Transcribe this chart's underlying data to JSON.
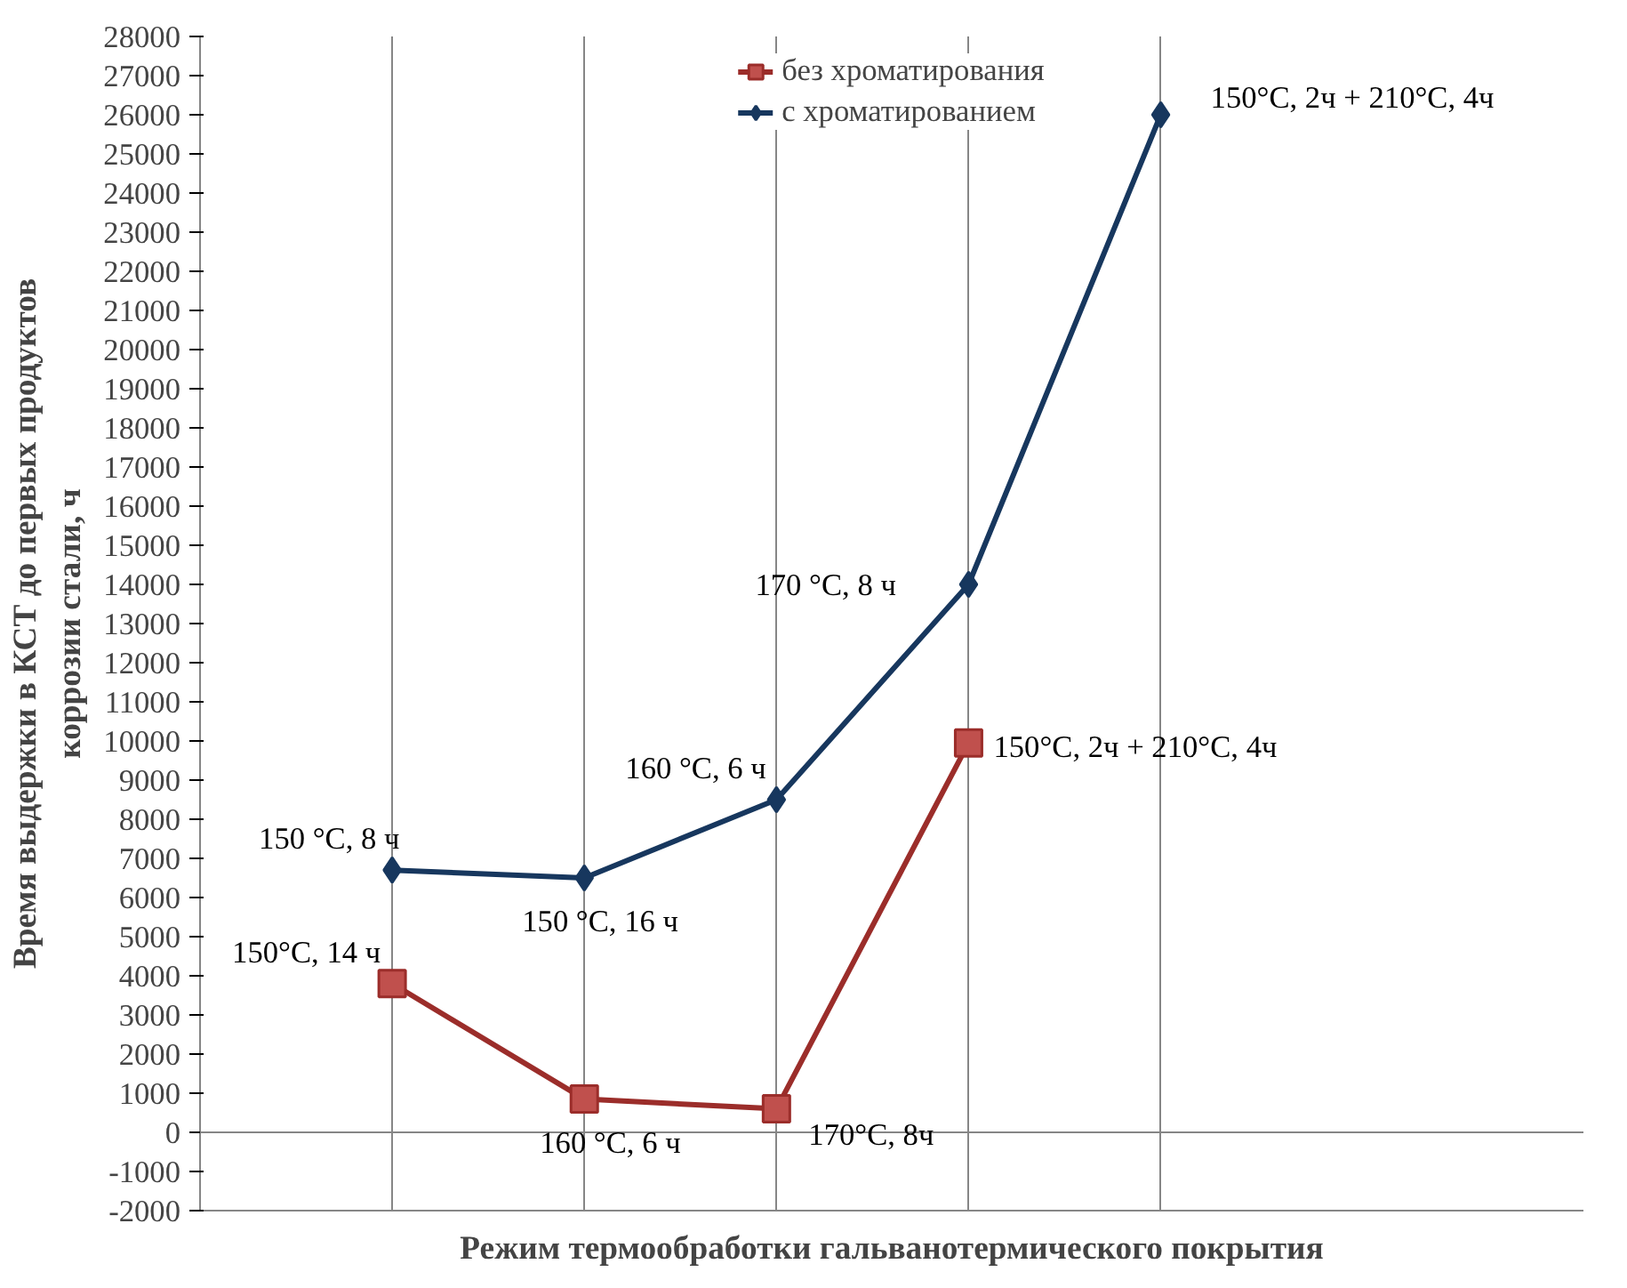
{
  "chart_data": {
    "type": "line",
    "xlabel": "Режим термообработки гальванотермического покрытия",
    "ylabel": "Время выдержки в КСТ до первых продуктов\nкоррозии стали, ч",
    "categories": [
      null,
      null,
      null,
      null,
      null
    ],
    "ylim": [
      -2000,
      28000
    ],
    "yticks": [
      -2000,
      -1000,
      0,
      1000,
      2000,
      3000,
      4000,
      5000,
      6000,
      7000,
      8000,
      9000,
      10000,
      11000,
      12000,
      13000,
      14000,
      15000,
      16000,
      17000,
      18000,
      19000,
      20000,
      21000,
      22000,
      23000,
      24000,
      25000,
      26000,
      27000,
      28000
    ],
    "tick_labels": "y",
    "grid": "x",
    "legend": "top",
    "ref_lines": [
      {
        "axis": "y",
        "value": 0,
        "color": "#868686"
      }
    ],
    "series": [
      {
        "name": "без хроматирования",
        "color": "#9b2d2a",
        "marker": "square",
        "values": [
          3800,
          850,
          600,
          9950,
          null
        ]
      },
      {
        "name": "с хроматированием",
        "color": "#17375e",
        "marker": "diamond",
        "values": [
          6700,
          6500,
          8500,
          14000,
          26000
        ]
      }
    ],
    "annotations": [
      "150°C, 14 ч",
      "160 °C, 6 ч",
      "170°C, 8ч",
      "150°C, 2ч + 210°C, 4ч",
      "150 °C, 8 ч",
      "150 °C, 16 ч",
      "160 °C, 6 ч",
      "170 °C, 8 ч",
      "150°C, 2ч + 210°C, 4ч"
    ]
  }
}
